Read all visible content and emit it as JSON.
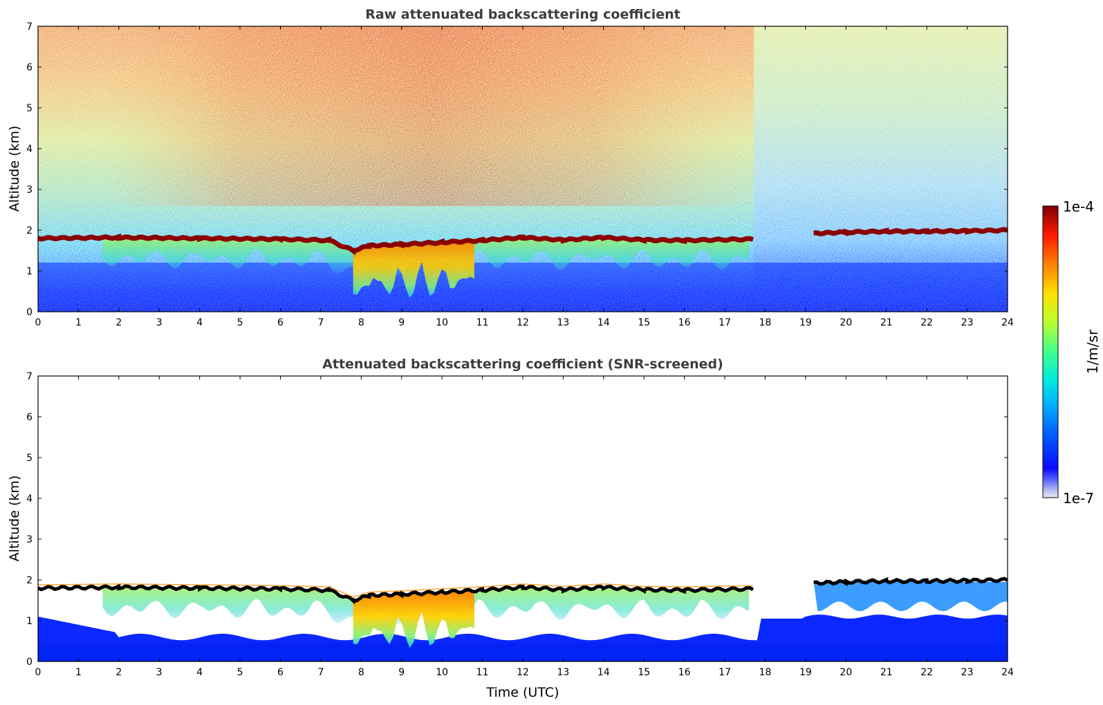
{
  "chart_data": [
    {
      "type": "heatmap",
      "title": "Raw attenuated backscattering coefficient",
      "xlabel": "",
      "ylabel": "Altitude (km)",
      "xlim": [
        0,
        24
      ],
      "ylim": [
        0,
        7
      ],
      "x_ticks": [
        "0",
        "1",
        "2",
        "3",
        "4",
        "5",
        "6",
        "7",
        "8",
        "9",
        "10",
        "11",
        "12",
        "13",
        "14",
        "15",
        "16",
        "17",
        "18",
        "19",
        "20",
        "21",
        "22",
        "23",
        "24"
      ],
      "y_ticks": [
        "0",
        "1",
        "2",
        "3",
        "4",
        "5",
        "6",
        "7"
      ],
      "cloud_base_km": [
        [
          0,
          1.8
        ],
        [
          2,
          1.82
        ],
        [
          4,
          1.8
        ],
        [
          6,
          1.78
        ],
        [
          7.2,
          1.75
        ],
        [
          7.8,
          1.5
        ],
        [
          8.2,
          1.62
        ],
        [
          9,
          1.65
        ],
        [
          10,
          1.7
        ],
        [
          11,
          1.75
        ],
        [
          12,
          1.82
        ],
        [
          13,
          1.76
        ],
        [
          14,
          1.82
        ],
        [
          15,
          1.76
        ],
        [
          16,
          1.75
        ],
        [
          17.7,
          1.78
        ],
        [
          19.2,
          1.92
        ],
        [
          20,
          1.95
        ],
        [
          21,
          1.97
        ],
        [
          22,
          1.97
        ],
        [
          23,
          1.98
        ],
        [
          24,
          2.0
        ]
      ],
      "cloud_gap_utc": [
        17.8,
        19.2
      ]
    },
    {
      "type": "heatmap",
      "title": "Attenuated backscattering coefficient (SNR-screened)",
      "xlabel": "Time (UTC)",
      "ylabel": "Altitude (km)",
      "xlim": [
        0,
        24
      ],
      "ylim": [
        0,
        7
      ],
      "x_ticks": [
        "0",
        "1",
        "2",
        "3",
        "4",
        "5",
        "6",
        "7",
        "8",
        "9",
        "10",
        "11",
        "12",
        "13",
        "14",
        "15",
        "16",
        "17",
        "18",
        "19",
        "20",
        "21",
        "22",
        "23",
        "24"
      ],
      "y_ticks": [
        "0",
        "1",
        "2",
        "3",
        "4",
        "5",
        "6",
        "7"
      ],
      "cloud_base_km": [
        [
          0,
          1.8
        ],
        [
          2,
          1.82
        ],
        [
          4,
          1.8
        ],
        [
          6,
          1.78
        ],
        [
          7.2,
          1.75
        ],
        [
          7.8,
          1.5
        ],
        [
          8.2,
          1.62
        ],
        [
          9,
          1.65
        ],
        [
          10,
          1.7
        ],
        [
          11,
          1.75
        ],
        [
          12,
          1.82
        ],
        [
          13,
          1.76
        ],
        [
          14,
          1.82
        ],
        [
          15,
          1.76
        ],
        [
          16,
          1.75
        ],
        [
          17.7,
          1.78
        ],
        [
          19.2,
          1.92
        ],
        [
          20,
          1.95
        ],
        [
          21,
          1.97
        ],
        [
          22,
          1.97
        ],
        [
          23,
          1.98
        ],
        [
          24,
          2.0
        ]
      ],
      "cloud_gap_utc": [
        17.8,
        19.2
      ]
    }
  ],
  "colorbar": {
    "max_label": "1e-4",
    "min_label": "1e-7",
    "unit_label": "1/m/sr",
    "colormap": "jet",
    "scale": "log",
    "range": [
      1e-07,
      0.0001
    ]
  },
  "colors": {
    "cloud": "#8b0000",
    "cloud_edge": "#000000",
    "low_signal": "#0a1fff"
  }
}
